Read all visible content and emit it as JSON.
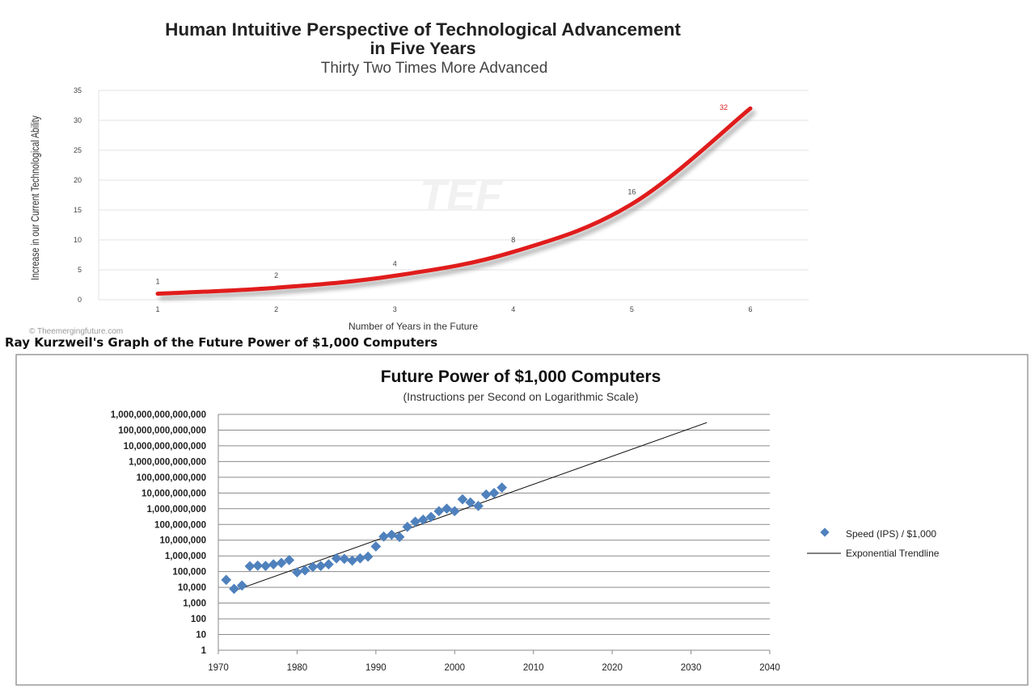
{
  "charts": [
    {
      "title_line1": "Human Intuitive Perspective of Technological Advancement",
      "title_line2": "in Five Years",
      "subtitle": "Thirty Two Times More Advanced",
      "watermark": "TEF",
      "credit": "© Theemergingfuture.com"
    },
    {
      "caption": "Ray Kurzweil's Graph of the Future Power of $1,000 Computers"
    }
  ],
  "chart_data": [
    {
      "type": "line",
      "title": "Human Intuitive Perspective of Technological Advancement in Five Years",
      "subtitle": "Thirty Two Times More Advanced",
      "xlabel": "Number of Years in the Future",
      "ylabel": "Increase in our Current Technological Ability",
      "x": [
        1,
        2,
        3,
        4,
        5,
        6
      ],
      "series": [
        {
          "values": [
            1,
            2,
            4,
            8,
            16,
            32
          ],
          "data_labels": [
            "1",
            "2",
            "4",
            "8",
            "16",
            "32"
          ],
          "color": "#e01b1b"
        }
      ],
      "xlim": [
        1,
        6
      ],
      "ylim": [
        0,
        35
      ],
      "yticks": [
        "0",
        "5",
        "10",
        "15",
        "20",
        "25",
        "30",
        "35"
      ],
      "xticks": [
        "1",
        "2",
        "3",
        "4",
        "5",
        "6"
      ],
      "grid": true,
      "legend": "none"
    },
    {
      "type": "scatter",
      "title": "Future Power of $1,000 Computers",
      "subtitle": "(Instructions per Second on Logarithmic Scale)",
      "xlabel": "",
      "ylabel": "",
      "yscale": "log",
      "xlim": [
        1970,
        2040
      ],
      "ylim": [
        1,
        1000000000000000
      ],
      "xticks": [
        "1970",
        "1980",
        "1990",
        "2000",
        "2010",
        "2020",
        "2030",
        "2040"
      ],
      "yticks": [
        "1",
        "10",
        "100",
        "1,000",
        "10,000",
        "100,000",
        "1,000,000",
        "10,000,000",
        "100,000,000",
        "1,000,000,000",
        "10,000,000,000",
        "100,000,000,000",
        "1,000,000,000,000",
        "10,000,000,000,000",
        "100,000,000,000,000",
        "1,000,000,000,000,000"
      ],
      "grid": true,
      "legend": "right",
      "series": [
        {
          "name": "Speed (IPS) / $1,000",
          "color": "#4f81bd",
          "marker": "diamond",
          "points": [
            [
              1971,
              30000
            ],
            [
              1972,
              8000
            ],
            [
              1973,
              13000
            ],
            [
              1974,
              220000
            ],
            [
              1975,
              240000
            ],
            [
              1976,
              230000
            ],
            [
              1977,
              290000
            ],
            [
              1978,
              360000
            ],
            [
              1979,
              540000
            ],
            [
              1980,
              90000
            ],
            [
              1981,
              120000
            ],
            [
              1982,
              200000
            ],
            [
              1983,
              230000
            ],
            [
              1984,
              290000
            ],
            [
              1985,
              700000
            ],
            [
              1986,
              650000
            ],
            [
              1987,
              500000
            ],
            [
              1988,
              700000
            ],
            [
              1989,
              900000
            ],
            [
              1990,
              4000000
            ],
            [
              1991,
              17000000
            ],
            [
              1992,
              22000000
            ],
            [
              1993,
              16000000
            ],
            [
              1994,
              70000000
            ],
            [
              1995,
              150000000
            ],
            [
              1996,
              200000000
            ],
            [
              1997,
              300000000
            ],
            [
              1998,
              700000000
            ],
            [
              1999,
              1000000000
            ],
            [
              2000,
              700000000
            ],
            [
              2001,
              4000000000
            ],
            [
              2002,
              2500000000
            ],
            [
              2003,
              1500000000
            ],
            [
              2004,
              8000000000
            ],
            [
              2005,
              10000000000
            ],
            [
              2006,
              22000000000
            ]
          ]
        },
        {
          "name": "Exponential Trendline",
          "color": "#000000",
          "type": "line",
          "points": [
            [
              1972,
              6000
            ],
            [
              2032,
              300000000000000
            ]
          ]
        }
      ]
    }
  ]
}
